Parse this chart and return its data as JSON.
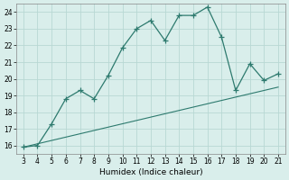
{
  "xlabel": "Humidex (Indice chaleur)",
  "line_color": "#2d7a6e",
  "bg_color": "#d9eeeb",
  "grid_color": "#b8d8d4",
  "xlim": [
    2.5,
    21.5
  ],
  "ylim": [
    15.5,
    24.5
  ],
  "xticks": [
    3,
    4,
    5,
    6,
    7,
    8,
    9,
    10,
    11,
    12,
    13,
    14,
    15,
    16,
    17,
    18,
    19,
    20,
    21
  ],
  "yticks": [
    16,
    17,
    18,
    19,
    20,
    21,
    22,
    23,
    24
  ],
  "curve_x": [
    3,
    4,
    5,
    6,
    7,
    8,
    9,
    10,
    11,
    12,
    13,
    14,
    15,
    16,
    17,
    18,
    19,
    20,
    21
  ],
  "curve_y": [
    15.9,
    16.0,
    17.3,
    18.8,
    19.3,
    18.8,
    20.2,
    21.85,
    23.0,
    23.5,
    22.3,
    23.8,
    23.8,
    24.3,
    22.5,
    19.3,
    20.9,
    19.9,
    20.3
  ],
  "line2_x": [
    3,
    21
  ],
  "line2_y": [
    15.9,
    19.5
  ]
}
